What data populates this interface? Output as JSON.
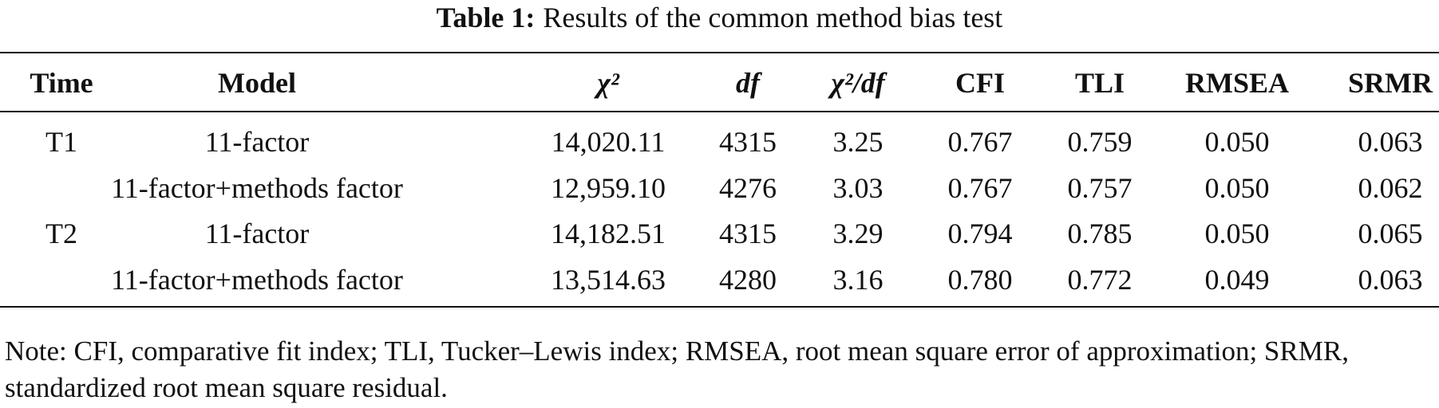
{
  "caption": {
    "label": "Table 1:",
    "text": "Results of the common method bias test"
  },
  "table": {
    "header": [
      "Time",
      "Model",
      "χ²",
      "df",
      "χ²/df",
      "CFI",
      "TLI",
      "RMSEA",
      "SRMR"
    ],
    "groups": [
      {
        "time": "T1",
        "rows": [
          [
            "11-factor",
            "14,020.11",
            "4315",
            "3.25",
            "0.767",
            "0.759",
            "0.050",
            "0.063"
          ],
          [
            "11-factor+methods factor",
            "12,959.10",
            "4276",
            "3.03",
            "0.767",
            "0.757",
            "0.050",
            "0.062"
          ]
        ]
      },
      {
        "time": "T2",
        "rows": [
          [
            "11-factor",
            "14,182.51",
            "4315",
            "3.29",
            "0.794",
            "0.785",
            "0.050",
            "0.065"
          ],
          [
            "11-factor+methods factor",
            "13,514.63",
            "4280",
            "3.16",
            "0.780",
            "0.772",
            "0.049",
            "0.063"
          ]
        ]
      }
    ]
  },
  "note": "Note: CFI, comparative fit index; TLI, Tucker–Lewis index; RMSEA, root mean square error of approximation; SRMR, standardized root mean square residual."
}
